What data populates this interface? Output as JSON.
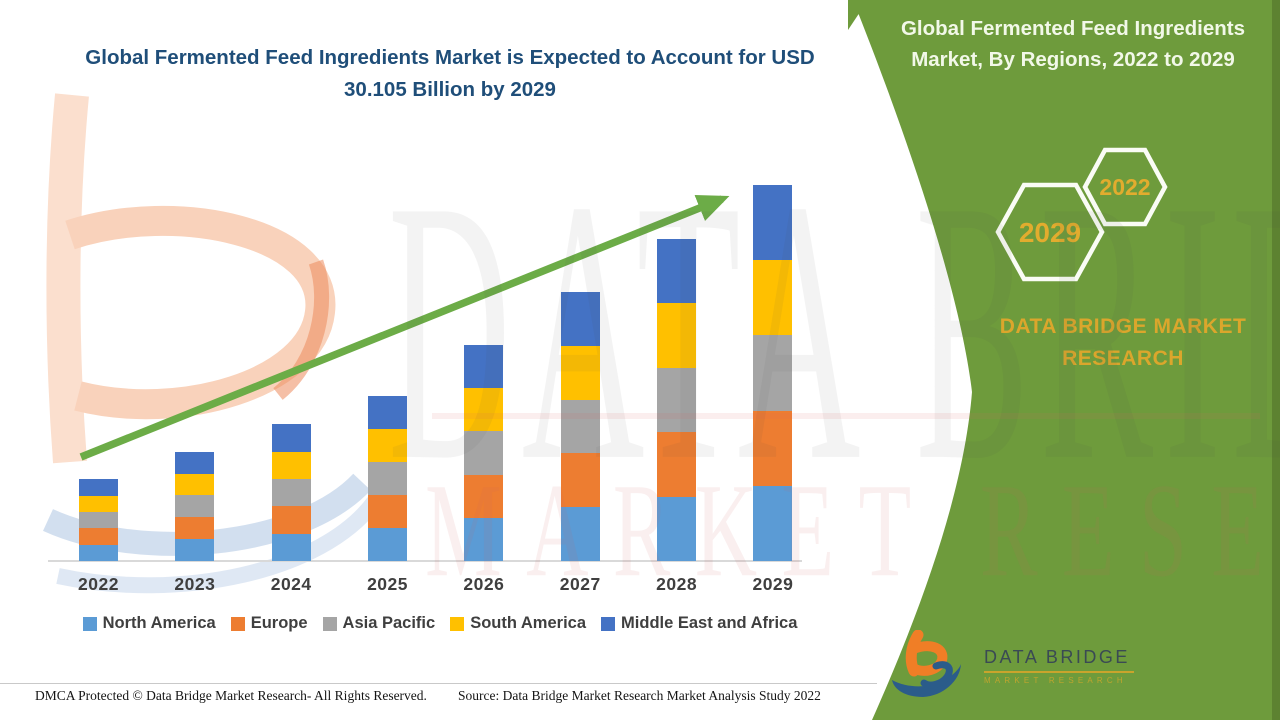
{
  "title": {
    "text": "Global Fermented Feed Ingredients Market is Expected to Account for USD 30.105 Billion by 2029",
    "color": "#1F4E79"
  },
  "chart_data": {
    "type": "bar",
    "stacked": true,
    "title": "Global Fermented Feed Ingredients Market is Expected to Account for USD 30.105 Billion by 2029",
    "unit": "USD Billion",
    "categories": [
      "2022",
      "2023",
      "2024",
      "2025",
      "2026",
      "2027",
      "2028",
      "2029"
    ],
    "series": [
      {
        "name": "North America",
        "color": "#5B9BD5",
        "values": [
          1.31,
          1.75,
          2.19,
          2.64,
          3.46,
          4.31,
          5.16,
          6.02
        ]
      },
      {
        "name": "Europe",
        "color": "#ED7D31",
        "values": [
          1.31,
          1.75,
          2.19,
          2.64,
          3.46,
          4.31,
          5.16,
          6.02
        ]
      },
      {
        "name": "Asia Pacific",
        "color": "#A5A5A5",
        "values": [
          1.31,
          1.75,
          2.19,
          2.64,
          3.46,
          4.31,
          5.16,
          6.02
        ]
      },
      {
        "name": "South America",
        "color": "#FFC000",
        "values": [
          1.31,
          1.75,
          2.19,
          2.64,
          3.46,
          4.31,
          5.16,
          6.02
        ]
      },
      {
        "name": "Middle East and Africa",
        "color": "#4472C4",
        "values": [
          1.31,
          1.75,
          2.19,
          2.64,
          3.46,
          4.31,
          5.16,
          6.02
        ]
      }
    ],
    "totals": [
      6.57,
      8.73,
      10.97,
      13.21,
      17.3,
      21.54,
      25.78,
      30.105
    ],
    "ylim": [
      0,
      32
    ],
    "grid": false,
    "legend_position": "bottom",
    "annotations": [
      "upward growth trend arrow from 2022 to 2029"
    ],
    "estimated": true
  },
  "watermark": {
    "line1": "DATA BRIDGE",
    "line2": "MARKET RESEARCH"
  },
  "footer": {
    "dmca": "DMCA Protected © Data Bridge Market Research- All Rights Reserved.",
    "source": "Source: Data Bridge Market Research Market Analysis Study 2022"
  },
  "right_panel": {
    "background": "#6E9B3C",
    "heading": "Global Fermented Feed Ingredients Market, By Regions, 2022 to 2029",
    "hexagons": [
      {
        "label": "2029"
      },
      {
        "label": "2022"
      }
    ],
    "brand_text": "DATA BRIDGE MARKET RESEARCH",
    "brand_color": "#DBA62C",
    "logo": {
      "name": "DATA BRIDGE",
      "tagline": "MARKET RESEARCH"
    }
  }
}
